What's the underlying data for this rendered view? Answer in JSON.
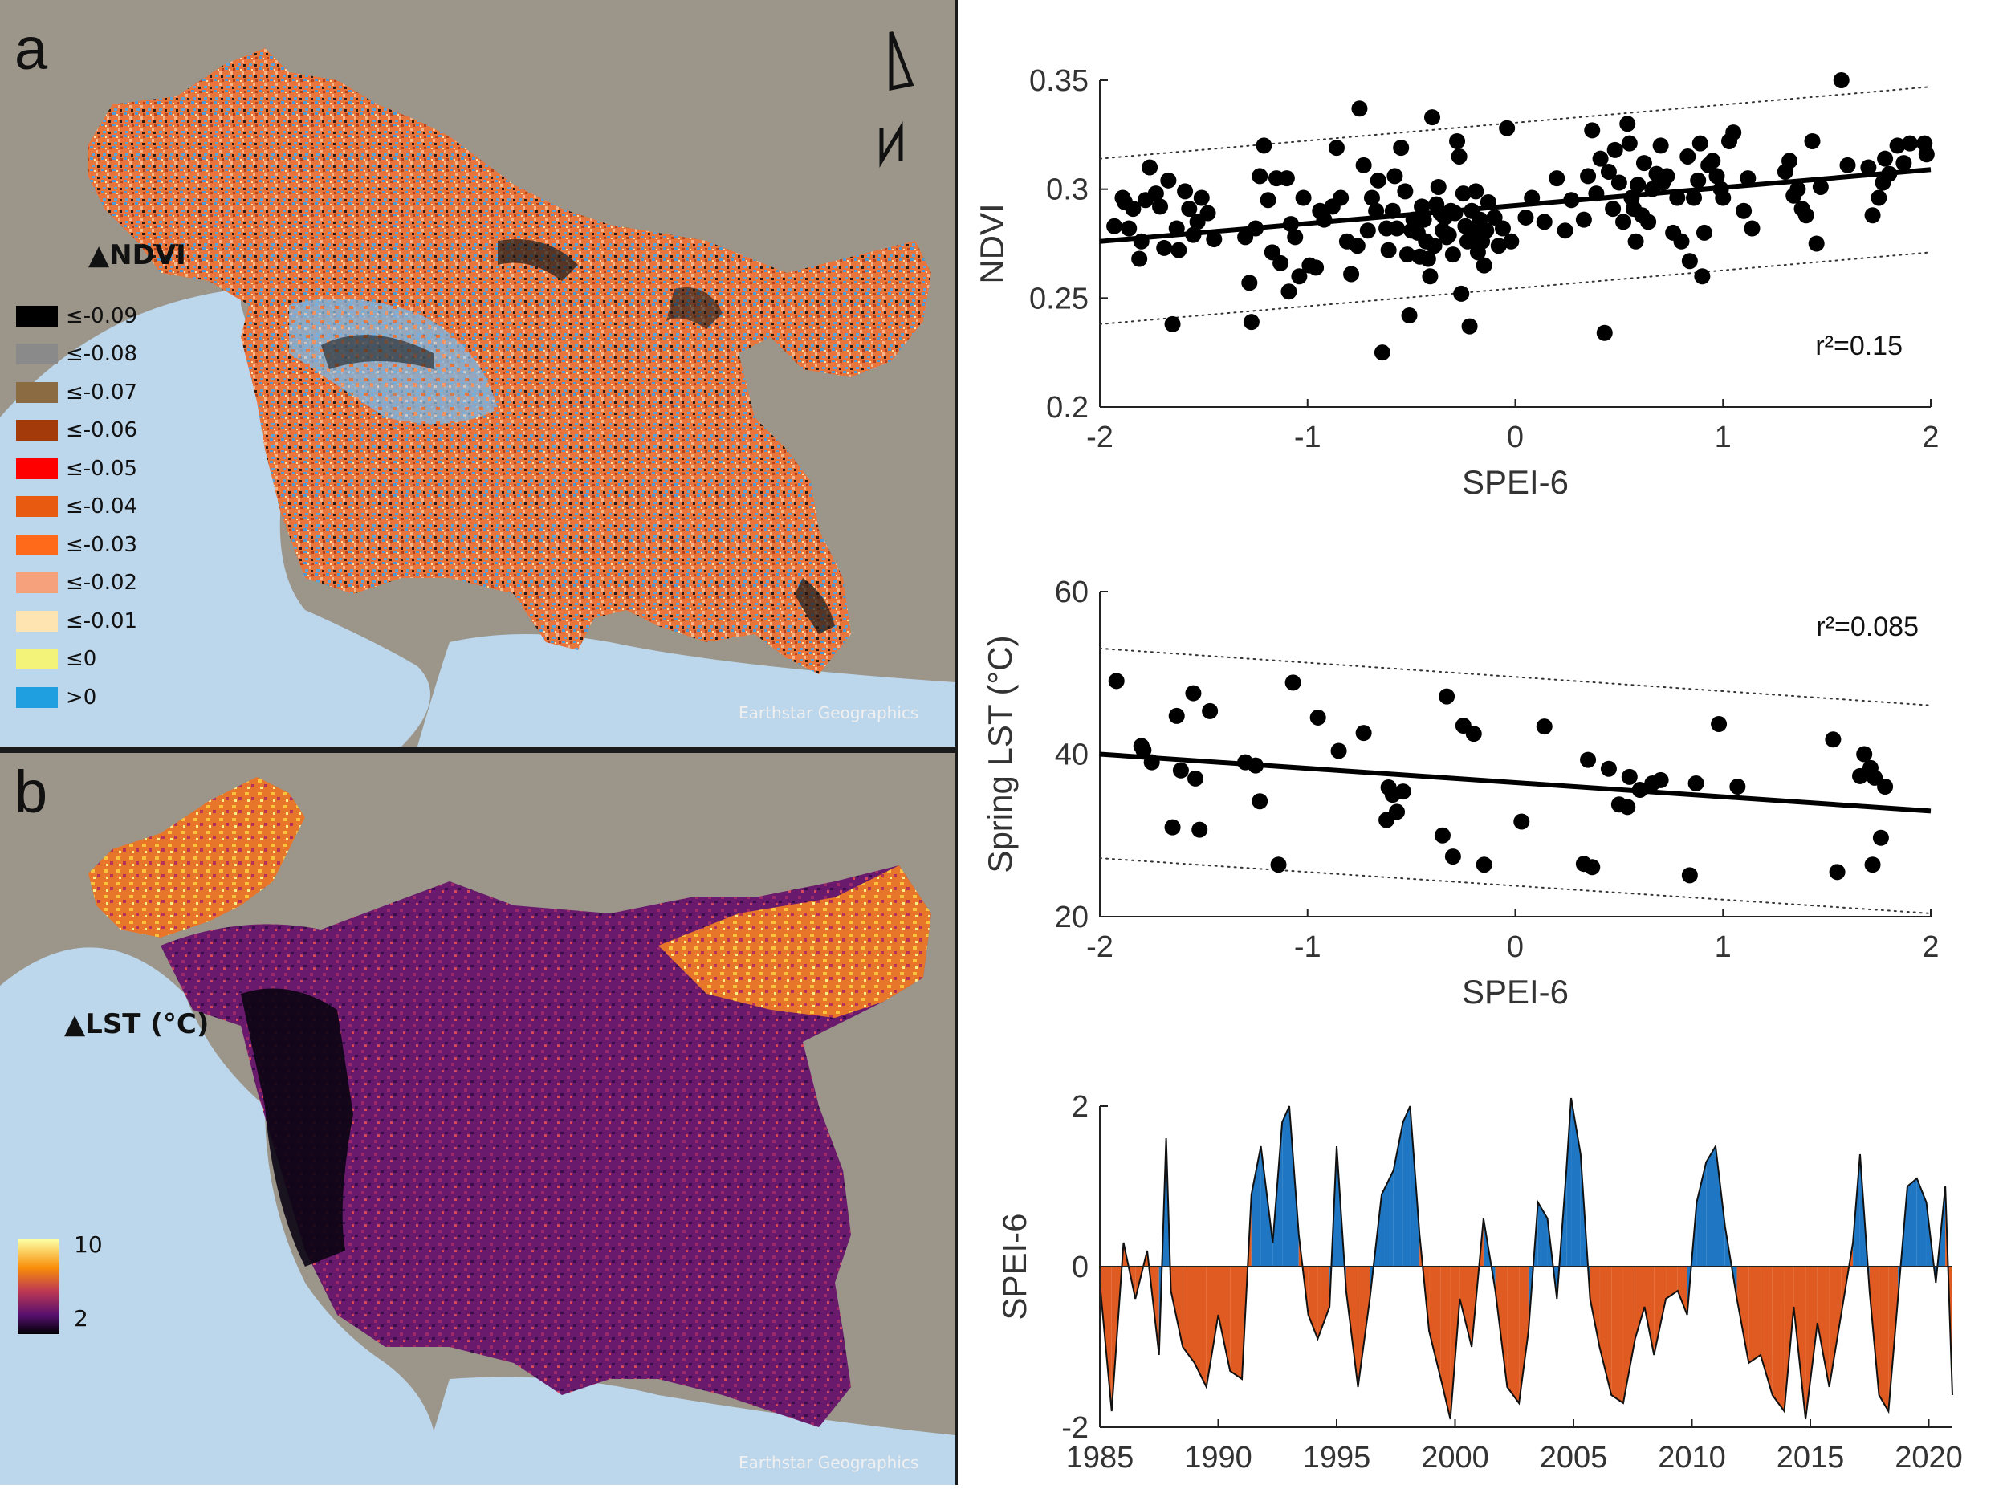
{
  "panel_a": {
    "letter": "a",
    "legend_title": "▲NDVI",
    "legend": [
      {
        "label": "≤-0.09",
        "color": "#000000"
      },
      {
        "label": "≤-0.08",
        "color": "#8a8a8a"
      },
      {
        "label": "≤-0.07",
        "color": "#8b6c42"
      },
      {
        "label": "≤-0.06",
        "color": "#a33a0a"
      },
      {
        "label": "≤-0.05",
        "color": "#ff0000"
      },
      {
        "label": "≤-0.04",
        "color": "#e85a10"
      },
      {
        "label": "≤-0.03",
        "color": "#ff6a1a"
      },
      {
        "label": "≤-0.02",
        "color": "#f7a07c"
      },
      {
        "label": "≤-0.01",
        "color": "#fde4b0"
      },
      {
        "label": "≤0",
        "color": "#f3f37a"
      },
      {
        "label": ">0",
        "color": "#1f9fe0"
      }
    ],
    "north_label": "N",
    "credit": "Earthstar Geographics"
  },
  "panel_b": {
    "letter": "b",
    "legend_title": "▲LST (°C)",
    "colorbar_max": "10",
    "colorbar_min": "2",
    "credit": "Earthstar Geographics"
  },
  "colors": {
    "ocean": "#bcd6ec",
    "terrain": "#9c968a",
    "positive_bar": "#1f77c4",
    "negative_bar": "#e05b22"
  },
  "chart_data": [
    {
      "type": "scatter",
      "id": "ndvi_vs_spei",
      "xlabel": "SPEI-6",
      "ylabel": "NDVI",
      "xlim": [
        -2,
        2
      ],
      "ylim": [
        0.2,
        0.35
      ],
      "xticks": [
        "-2",
        "-1",
        "0",
        "1",
        "2"
      ],
      "yticks": [
        "0.2",
        "0.25",
        "0.3",
        "0.35"
      ],
      "annotation": "r²=0.15",
      "fit": {
        "x": [
          -2,
          2
        ],
        "y": [
          0.276,
          0.309
        ]
      },
      "ci_upper": {
        "x": [
          -2,
          2
        ],
        "y": [
          0.314,
          0.347
        ]
      },
      "ci_lower": {
        "x": [
          -2,
          2
        ],
        "y": [
          0.238,
          0.271
        ]
      },
      "points": [
        [
          -1.93,
          0.283
        ],
        [
          -1.89,
          0.296
        ],
        [
          -1.88,
          0.294
        ],
        [
          -1.86,
          0.282
        ],
        [
          -1.84,
          0.291
        ],
        [
          -1.81,
          0.268
        ],
        [
          -1.8,
          0.276
        ],
        [
          -1.78,
          0.295
        ],
        [
          -1.76,
          0.31
        ],
        [
          -1.73,
          0.298
        ],
        [
          -1.71,
          0.292
        ],
        [
          -1.69,
          0.273
        ],
        [
          -1.67,
          0.304
        ],
        [
          -1.65,
          0.238
        ],
        [
          -1.63,
          0.282
        ],
        [
          -1.62,
          0.272
        ],
        [
          -1.59,
          0.299
        ],
        [
          -1.57,
          0.291
        ],
        [
          -1.55,
          0.279
        ],
        [
          -1.53,
          0.285
        ],
        [
          -1.51,
          0.296
        ],
        [
          -1.48,
          0.289
        ],
        [
          -1.45,
          0.277
        ],
        [
          -1.3,
          0.278
        ],
        [
          -1.28,
          0.257
        ],
        [
          -1.27,
          0.239
        ],
        [
          -1.25,
          0.282
        ],
        [
          -1.23,
          0.306
        ],
        [
          -1.21,
          0.32
        ],
        [
          -1.19,
          0.295
        ],
        [
          -1.17,
          0.271
        ],
        [
          -1.15,
          0.305
        ],
        [
          -1.13,
          0.266
        ],
        [
          -1.1,
          0.305
        ],
        [
          -1.09,
          0.253
        ],
        [
          -1.08,
          0.284
        ],
        [
          -1.06,
          0.278
        ],
        [
          -1.04,
          0.26
        ],
        [
          -1.02,
          0.296
        ],
        [
          -0.99,
          0.265
        ],
        [
          -0.96,
          0.264
        ],
        [
          -0.94,
          0.29
        ],
        [
          -0.92,
          0.286
        ],
        [
          -0.88,
          0.292
        ],
        [
          -0.86,
          0.319
        ],
        [
          -0.84,
          0.296
        ],
        [
          -0.81,
          0.276
        ],
        [
          -0.79,
          0.261
        ],
        [
          -0.76,
          0.274
        ],
        [
          -0.75,
          0.337
        ],
        [
          -0.73,
          0.311
        ],
        [
          -0.71,
          0.281
        ],
        [
          -0.69,
          0.296
        ],
        [
          -0.67,
          0.29
        ],
        [
          -0.66,
          0.304
        ],
        [
          -0.64,
          0.225
        ],
        [
          -0.62,
          0.282
        ],
        [
          -0.61,
          0.272
        ],
        [
          -0.59,
          0.29
        ],
        [
          -0.58,
          0.306
        ],
        [
          -0.57,
          0.282
        ],
        [
          -0.55,
          0.319
        ],
        [
          -0.53,
          0.299
        ],
        [
          -0.52,
          0.27
        ],
        [
          -0.51,
          0.242
        ],
        [
          -0.5,
          0.281
        ],
        [
          -0.49,
          0.286
        ],
        [
          -0.47,
          0.28
        ],
        [
          -0.46,
          0.269
        ],
        [
          -0.45,
          0.292
        ],
        [
          -0.44,
          0.286
        ],
        [
          -0.43,
          0.276
        ],
        [
          -0.42,
          0.268
        ],
        [
          -0.41,
          0.26
        ],
        [
          -0.4,
          0.333
        ],
        [
          -0.39,
          0.274
        ],
        [
          -0.38,
          0.293
        ],
        [
          -0.37,
          0.301
        ],
        [
          -0.36,
          0.289
        ],
        [
          -0.35,
          0.281
        ],
        [
          -0.34,
          0.287
        ],
        [
          -0.33,
          0.278
        ],
        [
          -0.32,
          0.279
        ],
        [
          -0.31,
          0.29
        ],
        [
          -0.3,
          0.27
        ],
        [
          -0.29,
          0.289
        ],
        [
          -0.28,
          0.322
        ],
        [
          -0.27,
          0.315
        ],
        [
          -0.26,
          0.252
        ],
        [
          -0.25,
          0.298
        ],
        [
          -0.24,
          0.283
        ],
        [
          -0.23,
          0.276
        ],
        [
          -0.22,
          0.237
        ],
        [
          -0.21,
          0.29
        ],
        [
          -0.2,
          0.281
        ],
        [
          -0.19,
          0.299
        ],
        [
          -0.18,
          0.271
        ],
        [
          -0.17,
          0.286
        ],
        [
          -0.16,
          0.276
        ],
        [
          -0.15,
          0.265
        ],
        [
          -0.14,
          0.281
        ],
        [
          -0.13,
          0.294
        ],
        [
          -0.1,
          0.287
        ],
        [
          -0.08,
          0.274
        ],
        [
          -0.06,
          0.282
        ],
        [
          -0.04,
          0.328
        ],
        [
          -0.02,
          0.276
        ],
        [
          0.05,
          0.287
        ],
        [
          0.08,
          0.296
        ],
        [
          0.14,
          0.285
        ],
        [
          0.2,
          0.305
        ],
        [
          0.24,
          0.281
        ],
        [
          0.27,
          0.295
        ],
        [
          0.33,
          0.286
        ],
        [
          0.35,
          0.306
        ],
        [
          0.37,
          0.327
        ],
        [
          0.39,
          0.298
        ],
        [
          0.41,
          0.314
        ],
        [
          0.43,
          0.234
        ],
        [
          0.45,
          0.308
        ],
        [
          0.47,
          0.291
        ],
        [
          0.48,
          0.318
        ],
        [
          0.5,
          0.303
        ],
        [
          0.52,
          0.285
        ],
        [
          0.54,
          0.33
        ],
        [
          0.55,
          0.321
        ],
        [
          0.56,
          0.296
        ],
        [
          0.57,
          0.291
        ],
        [
          0.58,
          0.276
        ],
        [
          0.59,
          0.302
        ],
        [
          0.61,
          0.288
        ],
        [
          0.62,
          0.312
        ],
        [
          0.64,
          0.285
        ],
        [
          0.66,
          0.3
        ],
        [
          0.68,
          0.307
        ],
        [
          0.7,
          0.32
        ],
        [
          0.71,
          0.303
        ],
        [
          0.73,
          0.306
        ],
        [
          0.76,
          0.28
        ],
        [
          0.78,
          0.296
        ],
        [
          0.8,
          0.276
        ],
        [
          0.83,
          0.315
        ],
        [
          0.84,
          0.267
        ],
        [
          0.86,
          0.296
        ],
        [
          0.88,
          0.304
        ],
        [
          0.89,
          0.321
        ],
        [
          0.9,
          0.26
        ],
        [
          0.91,
          0.28
        ],
        [
          0.93,
          0.311
        ],
        [
          0.95,
          0.313
        ],
        [
          0.97,
          0.306
        ],
        [
          0.99,
          0.3
        ],
        [
          1.0,
          0.296
        ],
        [
          1.03,
          0.322
        ],
        [
          1.05,
          0.326
        ],
        [
          1.1,
          0.29
        ],
        [
          1.12,
          0.305
        ],
        [
          1.14,
          0.282
        ],
        [
          1.3,
          0.308
        ],
        [
          1.32,
          0.313
        ],
        [
          1.34,
          0.297
        ],
        [
          1.36,
          0.3
        ],
        [
          1.38,
          0.291
        ],
        [
          1.4,
          0.288
        ],
        [
          1.43,
          0.322
        ],
        [
          1.45,
          0.275
        ],
        [
          1.47,
          0.301
        ],
        [
          1.57,
          0.35
        ],
        [
          1.6,
          0.311
        ],
        [
          1.7,
          0.31
        ],
        [
          1.72,
          0.288
        ],
        [
          1.75,
          0.296
        ],
        [
          1.77,
          0.303
        ],
        [
          1.78,
          0.314
        ],
        [
          1.8,
          0.307
        ],
        [
          1.84,
          0.32
        ],
        [
          1.87,
          0.312
        ],
        [
          1.9,
          0.321
        ],
        [
          1.97,
          0.321
        ],
        [
          1.98,
          0.316
        ]
      ]
    },
    {
      "type": "scatter",
      "id": "lst_vs_spei",
      "xlabel": "SPEI-6",
      "ylabel": "Spring LST (°C)",
      "xlim": [
        -2,
        2
      ],
      "ylim": [
        20,
        60
      ],
      "xticks": [
        "-2",
        "-1",
        "0",
        "1",
        "2"
      ],
      "yticks": [
        "20",
        "40",
        "60"
      ],
      "annotation": "r²=0.085",
      "fit": {
        "x": [
          -2,
          2
        ],
        "y": [
          40,
          33
        ]
      },
      "ci_upper": {
        "x": [
          -2,
          2
        ],
        "y": [
          53,
          46
        ]
      },
      "ci_lower": {
        "x": [
          -2,
          2
        ],
        "y": [
          27.2,
          20.4
        ]
      },
      "points": [
        [
          -1.92,
          49
        ],
        [
          -1.8,
          41
        ],
        [
          -1.79,
          40.5
        ],
        [
          -1.75,
          39
        ],
        [
          -1.65,
          31
        ],
        [
          -1.63,
          44.7
        ],
        [
          -1.61,
          38
        ],
        [
          -1.55,
          47.5
        ],
        [
          -1.54,
          37
        ],
        [
          -1.52,
          30.7
        ],
        [
          -1.47,
          45.3
        ],
        [
          -1.3,
          39
        ],
        [
          -1.25,
          38.6
        ],
        [
          -1.23,
          34.2
        ],
        [
          -1.14,
          26.4
        ],
        [
          -1.07,
          48.8
        ],
        [
          -0.95,
          44.5
        ],
        [
          -0.85,
          40.4
        ],
        [
          -0.73,
          42.6
        ],
        [
          -0.62,
          31.9
        ],
        [
          -0.61,
          35.9
        ],
        [
          -0.59,
          35
        ],
        [
          -0.57,
          32.9
        ],
        [
          -0.54,
          35.4
        ],
        [
          -0.35,
          30
        ],
        [
          -0.33,
          47.1
        ],
        [
          -0.3,
          27.4
        ],
        [
          -0.25,
          43.5
        ],
        [
          -0.2,
          42.5
        ],
        [
          -0.15,
          26.4
        ],
        [
          0.03,
          31.7
        ],
        [
          0.14,
          43.4
        ],
        [
          0.33,
          26.5
        ],
        [
          0.35,
          39.3
        ],
        [
          0.37,
          26.1
        ],
        [
          0.45,
          38.2
        ],
        [
          0.5,
          33.8
        ],
        [
          0.54,
          33.5
        ],
        [
          0.55,
          37.2
        ],
        [
          0.6,
          35.6
        ],
        [
          0.66,
          36.4
        ],
        [
          0.7,
          36.8
        ],
        [
          0.84,
          25.1
        ],
        [
          0.87,
          36.4
        ],
        [
          0.98,
          43.7
        ],
        [
          1.07,
          36
        ],
        [
          1.53,
          41.8
        ],
        [
          1.55,
          25.5
        ],
        [
          1.66,
          37.3
        ],
        [
          1.68,
          40
        ],
        [
          1.71,
          38.3
        ],
        [
          1.72,
          26.4
        ],
        [
          1.73,
          37.1
        ],
        [
          1.76,
          29.7
        ],
        [
          1.78,
          36
        ]
      ]
    },
    {
      "type": "area",
      "id": "spei_timeseries",
      "ylabel": "SPEI-6",
      "xlim": [
        1985,
        2021
      ],
      "ylim": [
        -2,
        2
      ],
      "xticks": [
        "1985",
        "1990",
        "1995",
        "2000",
        "2005",
        "2010",
        "2015",
        "2020"
      ],
      "yticks": [
        "-2",
        "0",
        "2"
      ],
      "x": [
        1985.0,
        1985.5,
        1986.0,
        1986.5,
        1987.0,
        1987.5,
        1987.8,
        1988.0,
        1988.5,
        1989.0,
        1989.5,
        1990.0,
        1990.5,
        1991.0,
        1991.4,
        1991.8,
        1992.3,
        1992.7,
        1993.0,
        1993.4,
        1993.8,
        1994.2,
        1994.7,
        1995.0,
        1995.4,
        1995.9,
        1996.4,
        1996.9,
        1997.4,
        1997.8,
        1998.1,
        1998.5,
        1998.9,
        1999.4,
        1999.8,
        2000.2,
        2000.7,
        2001.2,
        2001.7,
        2002.2,
        2002.7,
        2003.1,
        2003.5,
        2003.9,
        2004.3,
        2004.7,
        2004.9,
        2005.3,
        2005.7,
        2006.1,
        2006.6,
        2007.1,
        2007.6,
        2008.0,
        2008.4,
        2008.9,
        2009.4,
        2009.8,
        2010.2,
        2010.6,
        2011.0,
        2011.4,
        2011.9,
        2012.4,
        2012.9,
        2013.4,
        2013.9,
        2014.3,
        2014.8,
        2015.3,
        2015.8,
        2016.3,
        2016.8,
        2017.1,
        2017.5,
        2017.9,
        2018.3,
        2018.7,
        2019.1,
        2019.5,
        2019.9,
        2020.3,
        2020.7,
        2021.0
      ],
      "y": [
        -0.2,
        -1.8,
        0.3,
        -0.4,
        0.2,
        -1.1,
        1.6,
        -0.3,
        -1.0,
        -1.2,
        -1.5,
        -0.6,
        -1.3,
        -1.4,
        0.9,
        1.5,
        0.3,
        1.8,
        2.0,
        0.4,
        -0.6,
        -0.9,
        -0.5,
        1.5,
        -0.3,
        -1.5,
        -0.4,
        0.9,
        1.2,
        1.8,
        2.0,
        0.4,
        -0.8,
        -1.4,
        -1.9,
        -0.4,
        -1.0,
        0.6,
        -0.3,
        -1.5,
        -1.7,
        -0.8,
        0.8,
        0.6,
        -0.4,
        1.2,
        2.1,
        1.4,
        -0.4,
        -1.0,
        -1.6,
        -1.7,
        -0.9,
        -0.5,
        -1.1,
        -0.4,
        -0.3,
        -0.6,
        0.8,
        1.3,
        1.5,
        0.5,
        -0.4,
        -1.2,
        -1.1,
        -1.6,
        -1.8,
        -0.5,
        -1.9,
        -0.7,
        -1.5,
        -0.6,
        0.3,
        1.4,
        -0.3,
        -1.6,
        -1.8,
        -0.4,
        1.0,
        1.1,
        0.8,
        -0.2,
        1.0,
        -1.6
      ]
    }
  ]
}
